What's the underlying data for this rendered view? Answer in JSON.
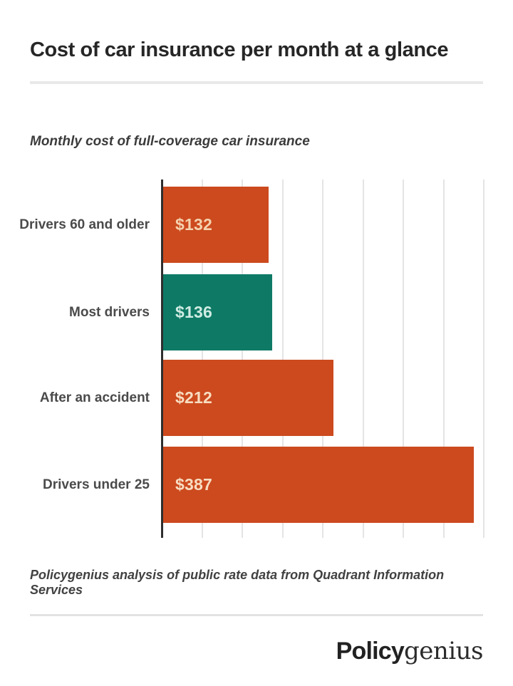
{
  "header": {
    "title": "Cost of car insurance per month at a glance"
  },
  "chart_data": {
    "type": "bar",
    "orientation": "horizontal",
    "title": "Monthly cost of full-coverage car insurance",
    "categories": [
      "Drivers 60 and older",
      "Most drivers",
      "After an accident",
      "Drivers under 25"
    ],
    "values": [
      132,
      136,
      212,
      387
    ],
    "value_labels": [
      "$132",
      "$136",
      "$212",
      "$387"
    ],
    "series": [
      {
        "name": "Monthly cost (USD)",
        "values": [
          132,
          136,
          212,
          387
        ]
      }
    ],
    "bar_colors": [
      "#cc4a1e",
      "#0e7a66",
      "#cc4a1e",
      "#cc4a1e"
    ],
    "value_label_colors": [
      "#f5d2af",
      "#d0ece3",
      "#f8ddc2",
      "#f8ddc2"
    ],
    "xlabel": "",
    "ylabel": "",
    "xlim": [
      0,
      415
    ],
    "gridline_interval": 50,
    "grid": true,
    "legend": false,
    "accent_orange": "#cc4a1e",
    "accent_teal": "#0e7a66"
  },
  "footer": {
    "source_note": "Policygenius analysis of public rate data from Quadrant Information Services",
    "logo_bold": "Policy",
    "logo_serif": "genius"
  }
}
